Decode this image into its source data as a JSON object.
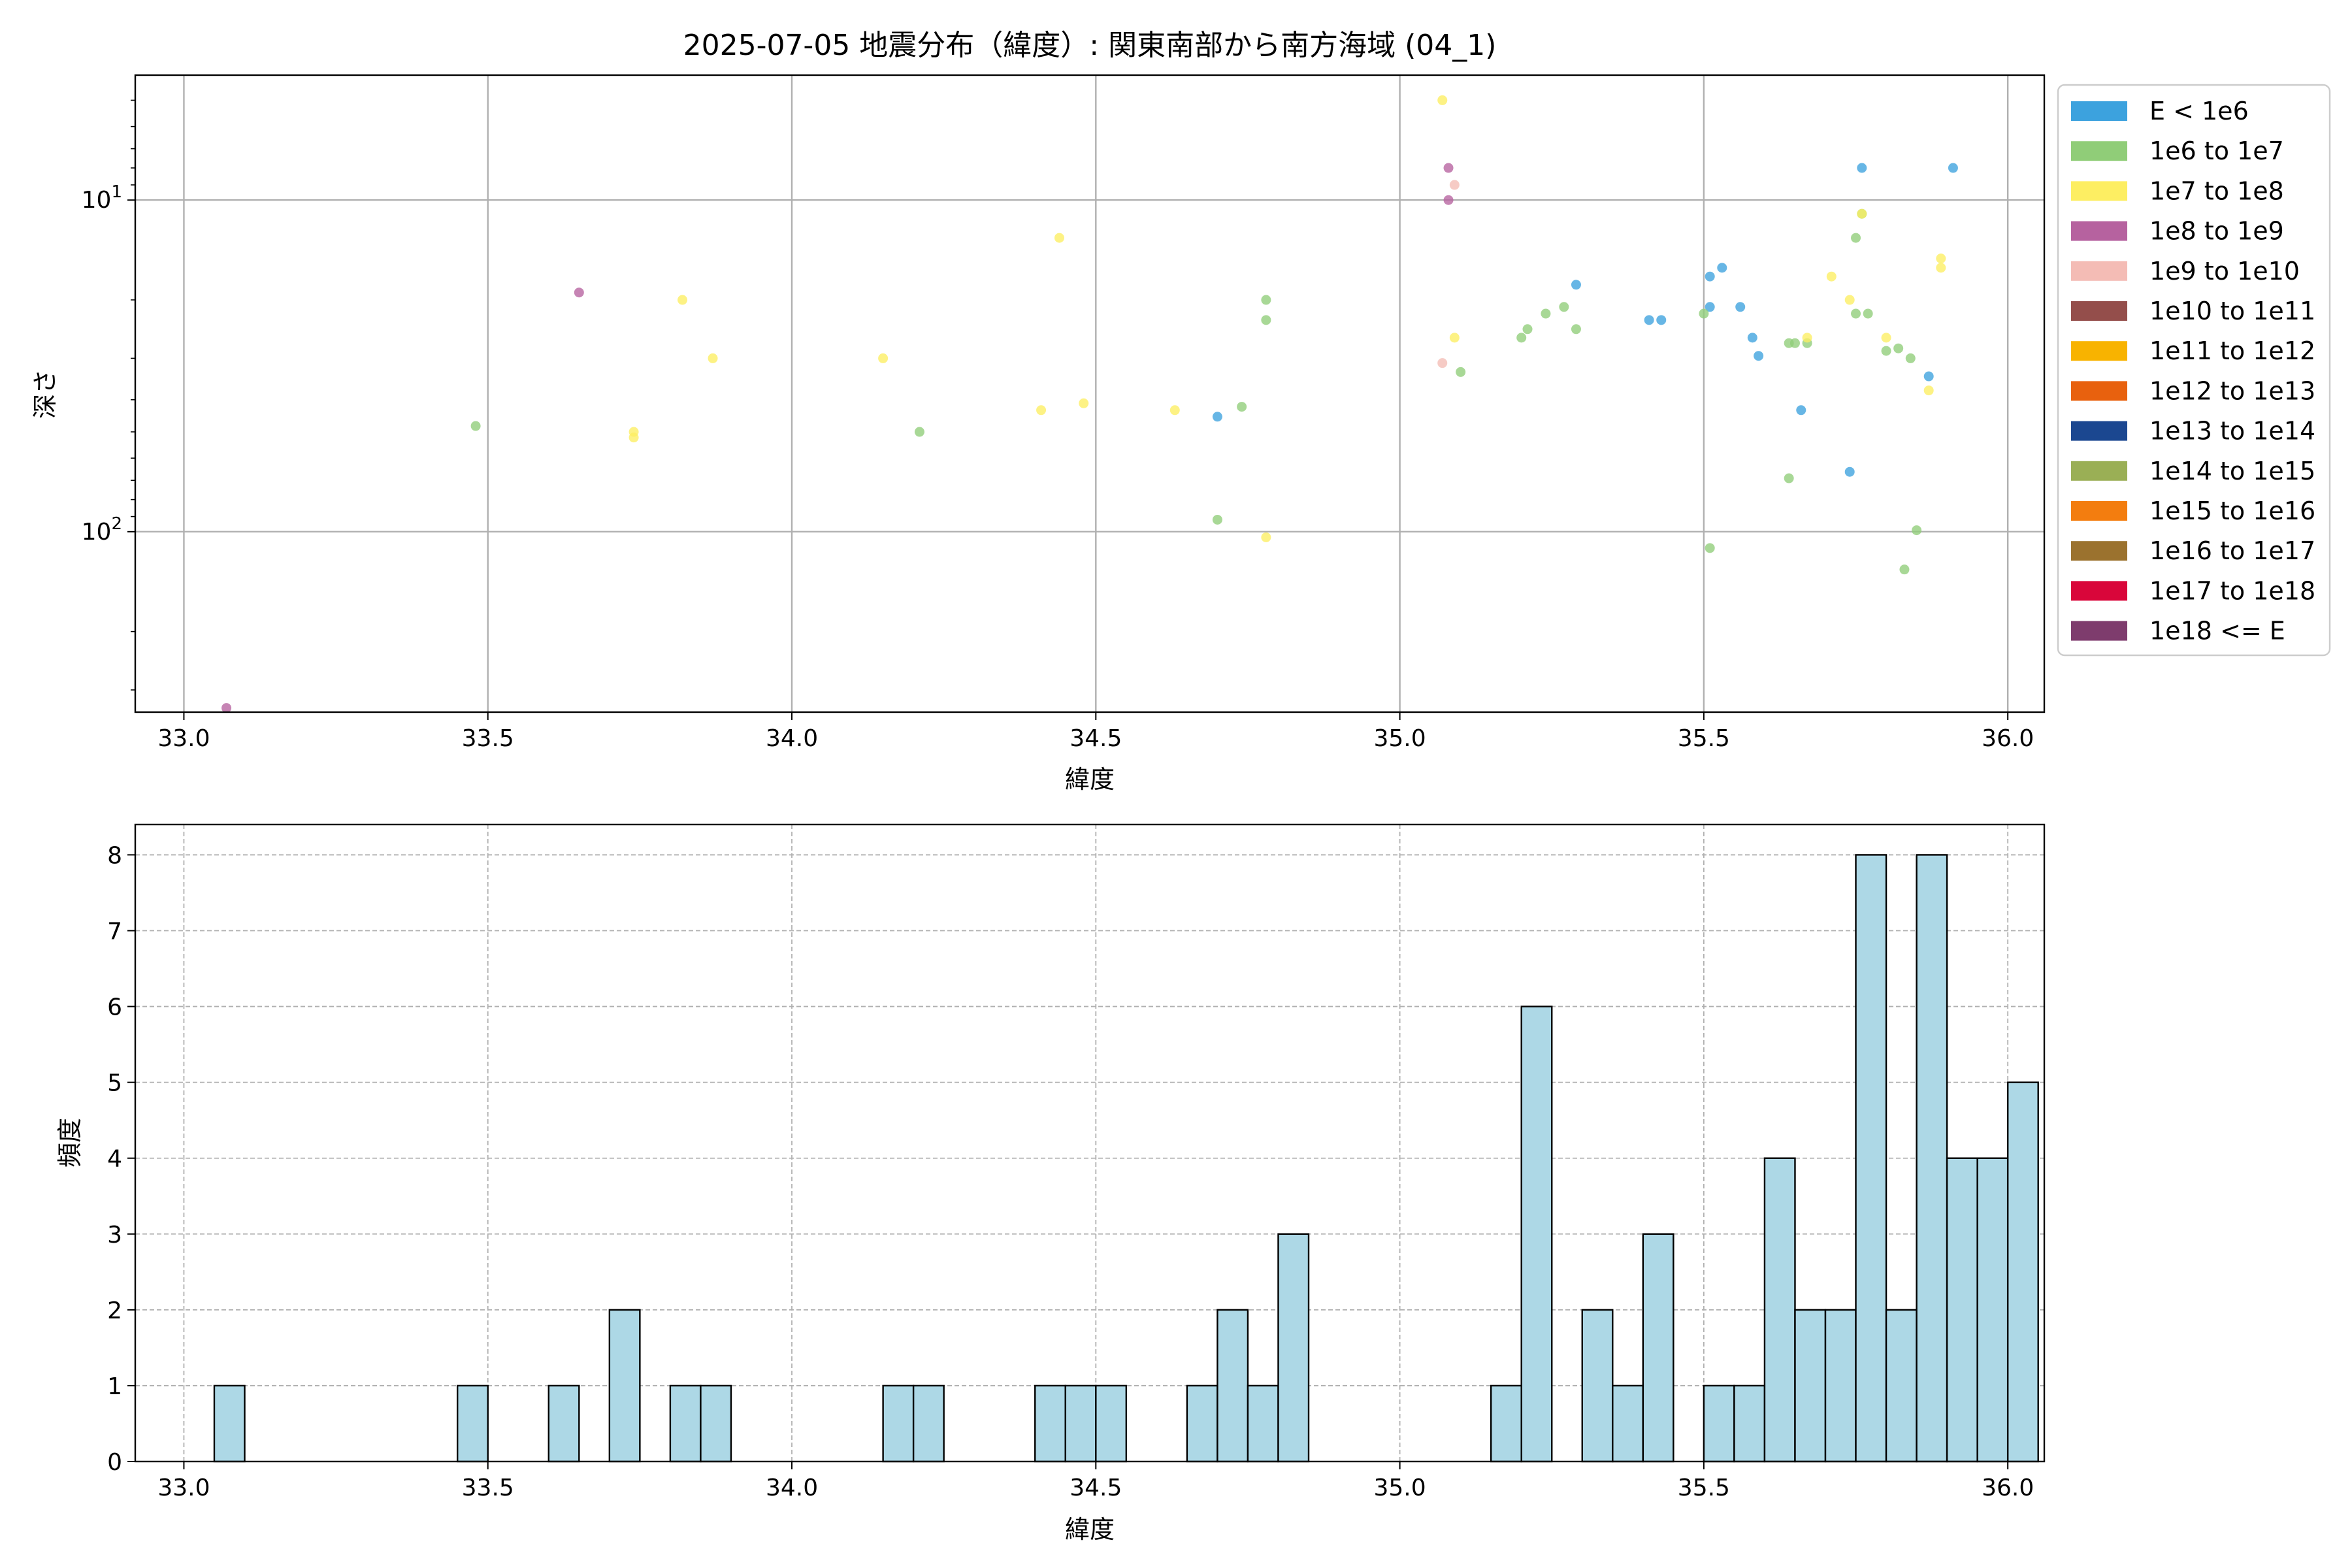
{
  "colors": {
    "hist_fill": "#add8e6",
    "hist_edge": "#000000",
    "grid": "#b0b0b0"
  },
  "chart_data": [
    {
      "type": "scatter",
      "title": "2025-07-05 地震分布（緯度）: 関東南部から南方海域 (04_1)",
      "xlabel": "緯度",
      "ylabel": "深さ",
      "xlim": [
        32.92,
        36.06
      ],
      "ylim": [
        350,
        4.2
      ],
      "yscale": "log",
      "y_inverted": true,
      "grid": true,
      "x_ticks": [
        33.0,
        33.5,
        34.0,
        34.5,
        35.0,
        35.5,
        36.0
      ],
      "x_tick_labels": [
        "33.0",
        "33.5",
        "34.0",
        "34.5",
        "35.0",
        "35.5",
        "36.0"
      ],
      "y_major_ticks": [
        10,
        100
      ],
      "y_tick_labels": [
        {
          "base": "10",
          "exp": "1"
        },
        {
          "base": "10",
          "exp": "2"
        }
      ],
      "legend_position": "outside-right",
      "legend": [
        {
          "label": "E < 1e6",
          "color": "#3ca2de"
        },
        {
          "label": "1e6 to 1e7",
          "color": "#90cd78"
        },
        {
          "label": "1e7 to 1e8",
          "color": "#fdee62"
        },
        {
          "label": "1e8 to 1e9",
          "color": "#b6629f"
        },
        {
          "label": "1e9 to 1e10",
          "color": "#f4bcb5"
        },
        {
          "label": "1e10 to 1e11",
          "color": "#944e4b"
        },
        {
          "label": "1e11 to 1e12",
          "color": "#f8b300"
        },
        {
          "label": "1e12 to 1e13",
          "color": "#e8610e"
        },
        {
          "label": "1e13 to 1e14",
          "color": "#1b4790"
        },
        {
          "label": "1e14 to 1e15",
          "color": "#9aaf55"
        },
        {
          "label": "1e15 to 1e16",
          "color": "#f37d0f"
        },
        {
          "label": "1e16 to 1e17",
          "color": "#9b722e"
        },
        {
          "label": "1e17 to 1e18",
          "color": "#d9063a"
        },
        {
          "label": "1e18 <= E",
          "color": "#7e3c6d"
        }
      ],
      "series": [
        {
          "class": 0,
          "points": [
            [
              34.7,
              45
            ],
            [
              35.29,
              18
            ],
            [
              35.41,
              23
            ],
            [
              35.43,
              23
            ],
            [
              35.51,
              17
            ],
            [
              35.51,
              21
            ],
            [
              35.53,
              16
            ],
            [
              35.56,
              21
            ],
            [
              35.58,
              26
            ],
            [
              35.59,
              29.5
            ],
            [
              35.66,
              43
            ],
            [
              35.74,
              66
            ],
            [
              35.76,
              8
            ],
            [
              35.87,
              34
            ],
            [
              35.91,
              8
            ]
          ]
        },
        {
          "class": 1,
          "points": [
            [
              33.48,
              48
            ],
            [
              34.21,
              50
            ],
            [
              34.7,
              92
            ],
            [
              34.74,
              42
            ],
            [
              34.78,
              20
            ],
            [
              34.78,
              23
            ],
            [
              35.1,
              33
            ],
            [
              35.2,
              26
            ],
            [
              35.21,
              24.5
            ],
            [
              35.24,
              22
            ],
            [
              35.27,
              21
            ],
            [
              35.29,
              24.5
            ],
            [
              35.5,
              22
            ],
            [
              35.51,
              112
            ],
            [
              35.64,
              69
            ],
            [
              35.64,
              27
            ],
            [
              35.65,
              27
            ],
            [
              35.67,
              27
            ],
            [
              35.75,
              13
            ],
            [
              35.75,
              22
            ],
            [
              35.76,
              11
            ],
            [
              35.77,
              22
            ],
            [
              35.8,
              28.5
            ],
            [
              35.82,
              28
            ],
            [
              35.83,
              130
            ],
            [
              35.84,
              30
            ],
            [
              35.85,
              99
            ]
          ]
        },
        {
          "class": 2,
          "points": [
            [
              33.74,
              50
            ],
            [
              33.74,
              52
            ],
            [
              33.82,
              20
            ],
            [
              33.87,
              30
            ],
            [
              34.15,
              30
            ],
            [
              34.41,
              43
            ],
            [
              34.44,
              13
            ],
            [
              34.48,
              41
            ],
            [
              34.63,
              43
            ],
            [
              34.78,
              104
            ],
            [
              35.07,
              5
            ],
            [
              35.09,
              26
            ],
            [
              35.67,
              26
            ],
            [
              35.71,
              17
            ],
            [
              35.74,
              20
            ],
            [
              35.76,
              11
            ],
            [
              35.8,
              26
            ],
            [
              35.87,
              37.5
            ],
            [
              35.89,
              16
            ],
            [
              35.89,
              15
            ]
          ]
        },
        {
          "class": 3,
          "points": [
            [
              33.07,
              340
            ],
            [
              33.65,
              19
            ],
            [
              35.08,
              8
            ],
            [
              35.08,
              10
            ]
          ]
        },
        {
          "class": 4,
          "points": [
            [
              35.07,
              31
            ],
            [
              35.09,
              9
            ]
          ]
        }
      ]
    },
    {
      "type": "bar",
      "xlabel": "緯度",
      "ylabel": "頻度",
      "xlim": [
        32.92,
        36.06
      ],
      "ylim": [
        0,
        8.4
      ],
      "grid": true,
      "grid_style": "dashed",
      "x_ticks": [
        33.0,
        33.5,
        34.0,
        34.5,
        35.0,
        35.5,
        36.0
      ],
      "x_tick_labels": [
        "33.0",
        "33.5",
        "34.0",
        "34.5",
        "35.0",
        "35.5",
        "36.0"
      ],
      "y_ticks": [
        0,
        1,
        2,
        3,
        4,
        5,
        6,
        7,
        8
      ],
      "y_tick_labels": [
        "0",
        "1",
        "2",
        "3",
        "4",
        "5",
        "6",
        "7",
        "8"
      ],
      "bin_start": 33.0,
      "bin_width": 0.05,
      "values": [
        0,
        1,
        0,
        0,
        0,
        0,
        0,
        0,
        0,
        1,
        0,
        0,
        1,
        0,
        2,
        0,
        1,
        1,
        0,
        0,
        0,
        0,
        0,
        1,
        1,
        0,
        0,
        0,
        1,
        1,
        1,
        0,
        0,
        1,
        2,
        1,
        3,
        0,
        0,
        0,
        0,
        0,
        0,
        1,
        6,
        0,
        2,
        1,
        3,
        0,
        1,
        1,
        4,
        2,
        2,
        8,
        2,
        8,
        4,
        4,
        5
      ]
    }
  ]
}
